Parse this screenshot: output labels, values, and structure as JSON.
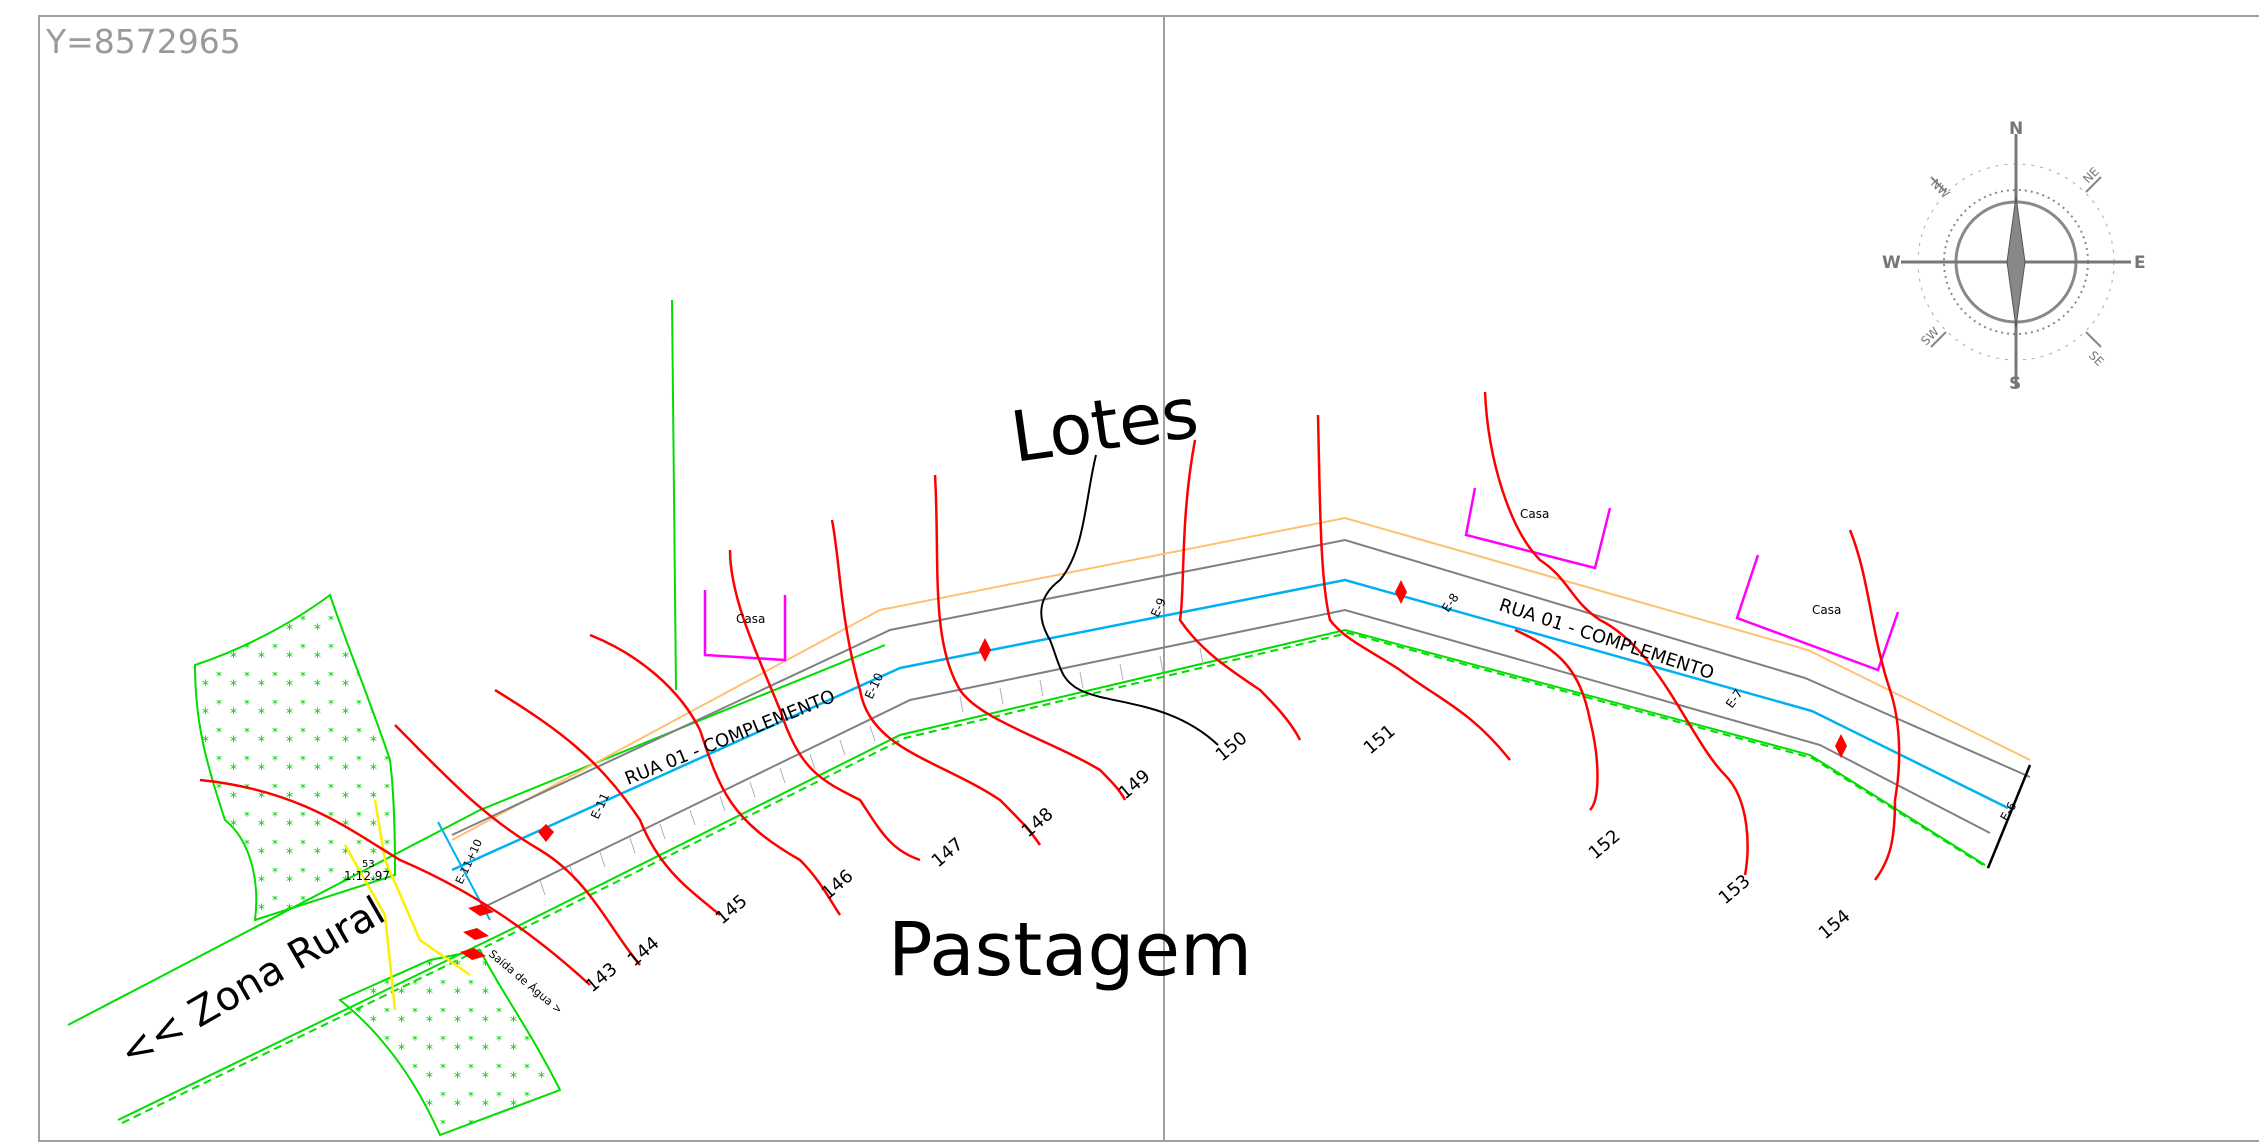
{
  "coordinate_label": "Y=8572965",
  "labels": {
    "lotes": "Lotes",
    "pastagem": "Pastagem",
    "zona_rural": "<< Zona Rural",
    "rua_left": "RUA 01 - COMPLEMENTO",
    "rua_right": "RUA 01 - COMPLEMENTO",
    "saida_agua": "Saída de Água >",
    "station_start": "E-11+10",
    "elevation": "1:12.97",
    "node": "53"
  },
  "houses": [
    "Casa",
    "Casa",
    "Casa"
  ],
  "stations": [
    "E-11",
    "E-10",
    "E-9",
    "E-8",
    "E-7",
    "E-6"
  ],
  "contours": [
    "143",
    "144",
    "145",
    "146",
    "147",
    "148",
    "149",
    "150",
    "151",
    "152",
    "153",
    "154"
  ],
  "compass": {
    "north": "N",
    "south": "S",
    "east": "E",
    "west": "W",
    "ne": "NE",
    "nw": "NW",
    "sw": "SW",
    "se": "SE"
  },
  "colors": {
    "frame": "#a0a0a0",
    "contour": "#ff0000",
    "road_center": "#00b0f0",
    "road_edge": "#808080",
    "vegetation": "#00dd00",
    "house": "#ff00ff",
    "yellow": "#ffee00",
    "orange": "#ffc070",
    "black": "#000000"
  }
}
